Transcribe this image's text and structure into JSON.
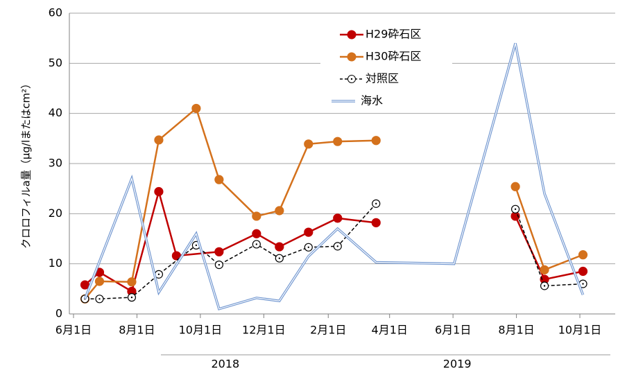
{
  "chart_data": {
    "type": "line",
    "y_label": "クロロフィルa量（μg/lまたはcm²）",
    "xlim": [
      "2018-05-28",
      "2019-11-04"
    ],
    "xticks": [
      {
        "value": "2018-06-01",
        "label": "6月1日"
      },
      {
        "value": "2018-08-01",
        "label": "8月1日"
      },
      {
        "value": "2018-10-01",
        "label": "10月1日"
      },
      {
        "value": "2018-12-01",
        "label": "12月1日"
      },
      {
        "value": "2019-02-01",
        "label": "2月1日"
      },
      {
        "value": "2019-04-01",
        "label": "4月1日"
      },
      {
        "value": "2019-06-01",
        "label": "6月1日"
      },
      {
        "value": "2019-08-01",
        "label": "8月1日"
      },
      {
        "value": "2019-10-01",
        "label": "10月1日"
      }
    ],
    "x_groups": [
      {
        "label": "2018",
        "value": "2018-10-25"
      },
      {
        "label": "2019",
        "value": "2019-06-05"
      }
    ],
    "ylim": [
      0,
      60
    ],
    "yticks": [
      0,
      10,
      20,
      30,
      40,
      50,
      60
    ],
    "grid": true,
    "series": [
      {
        "name": "H29砕石区",
        "color": "#c00000",
        "marker": "filled",
        "x": [
          "2018-06-12",
          "2018-06-26",
          "2018-07-27",
          "2018-08-22",
          "2018-09-08",
          "2018-10-19",
          "2018-11-24",
          "2018-12-16",
          "2019-01-13",
          "2019-02-10",
          "2019-03-19",
          null,
          "2019-07-31",
          "2019-08-28",
          "2019-10-04"
        ],
        "values": [
          5.8,
          8.3,
          4.5,
          24.4,
          11.6,
          12.4,
          16,
          13.4,
          16.3,
          19.1,
          18.2,
          null,
          19.5,
          6.9,
          8.5
        ]
      },
      {
        "name": "H30砕石区",
        "color": "#d4711c",
        "marker": "filled",
        "x": [
          "2018-06-12",
          "2018-06-26",
          "2018-07-27",
          "2018-08-22",
          "2018-09-27",
          "2018-10-19",
          "2018-11-24",
          "2018-12-16",
          "2019-01-13",
          "2019-02-10",
          "2019-03-19",
          null,
          "2019-07-31",
          "2019-08-28",
          "2019-10-04"
        ],
        "values": [
          3,
          6.5,
          6.4,
          34.7,
          41,
          26.8,
          19.5,
          20.6,
          33.9,
          34.4,
          34.6,
          null,
          25.4,
          8.8,
          11.8
        ]
      },
      {
        "name": "対照区",
        "color": "#000000",
        "marker": "open",
        "dash": true,
        "x": [
          "2018-06-12",
          "2018-06-26",
          "2018-07-27",
          "2018-08-22",
          "2018-09-27",
          "2018-10-19",
          "2018-11-24",
          "2018-12-16",
          "2019-01-13",
          "2019-02-10",
          "2019-03-19",
          null,
          "2019-07-31",
          "2019-08-28",
          "2019-10-04"
        ],
        "values": [
          3,
          3,
          3.3,
          7.9,
          13.7,
          9.8,
          13.9,
          11.1,
          13.3,
          13.5,
          22,
          null,
          20.9,
          5.6,
          6
        ]
      },
      {
        "name": "海水",
        "color": "#7096d0",
        "marker": "none",
        "double": true,
        "x": [
          "2018-06-12",
          "2018-07-27",
          "2018-08-22",
          "2018-09-27",
          "2018-10-19",
          "2018-11-24",
          "2018-12-16",
          "2019-01-13",
          "2019-02-10",
          "2019-03-19",
          "2019-06-02",
          "2019-07-31",
          "2019-08-28",
          "2019-10-04"
        ],
        "values": [
          3,
          27,
          4.3,
          16,
          1,
          3.2,
          2.6,
          11.5,
          17,
          10.3,
          10,
          54,
          24,
          3.8
        ]
      }
    ]
  }
}
